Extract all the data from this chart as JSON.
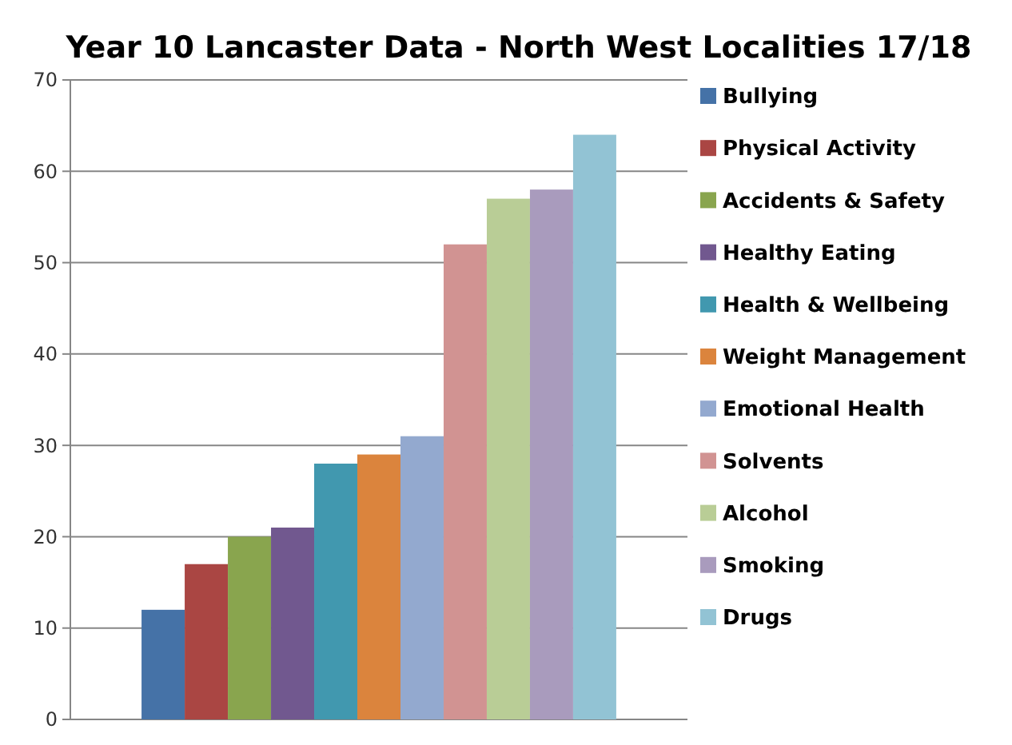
{
  "chart_data": {
    "type": "bar",
    "title": "Year 10 Lancaster Data - North West Localities 17/18",
    "categories": [
      null
    ],
    "series": [
      {
        "name": "Bullying",
        "color": "#4572a7",
        "values": [
          12
        ]
      },
      {
        "name": "Physical Activity",
        "color": "#aa4643",
        "values": [
          17
        ]
      },
      {
        "name": "Accidents & Safety",
        "color": "#89a54e",
        "values": [
          20
        ]
      },
      {
        "name": "Healthy Eating",
        "color": "#71588f",
        "values": [
          21
        ]
      },
      {
        "name": "Health & Wellbeing",
        "color": "#4198af",
        "values": [
          28
        ]
      },
      {
        "name": "Weight Management",
        "color": "#db843d",
        "values": [
          29
        ]
      },
      {
        "name": "Emotional Health",
        "color": "#93a9cf",
        "values": [
          31
        ]
      },
      {
        "name": "Solvents",
        "color": "#d19392",
        "values": [
          52
        ]
      },
      {
        "name": "Alcohol",
        "color": "#b9cd96",
        "values": [
          57
        ]
      },
      {
        "name": "Smoking",
        "color": "#a99bbd",
        "values": [
          58
        ]
      },
      {
        "name": "Drugs",
        "color": "#92c3d4",
        "values": [
          64
        ]
      }
    ],
    "ylim": [
      0,
      70
    ],
    "yticks": [
      0,
      10,
      20,
      30,
      40,
      50,
      60,
      70
    ],
    "grid": "y",
    "legend": "right"
  }
}
